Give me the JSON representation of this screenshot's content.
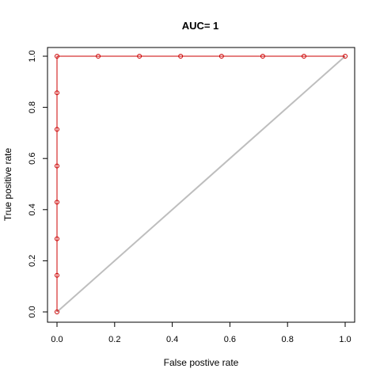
{
  "chart_data": {
    "type": "line",
    "title": "AUC= 1",
    "xlabel": "False postive rate",
    "ylabel": "True positive rate",
    "xlim": [
      0,
      1
    ],
    "ylim": [
      0,
      1
    ],
    "x_ticks": [
      "0.0",
      "0.2",
      "0.4",
      "0.6",
      "0.8",
      "1.0"
    ],
    "y_ticks": [
      "0.0",
      "0.2",
      "0.4",
      "0.6",
      "0.8",
      "1.0"
    ],
    "grid": false,
    "series": [
      {
        "color": "#cc0000",
        "marker": "open-circle",
        "points": [
          [
            0,
            0
          ],
          [
            0,
            0.143
          ],
          [
            0,
            0.286
          ],
          [
            0,
            0.429
          ],
          [
            0,
            0.571
          ],
          [
            0,
            0.714
          ],
          [
            0,
            0.857
          ],
          [
            0,
            1
          ],
          [
            0.143,
            1
          ],
          [
            0.286,
            1
          ],
          [
            0.429,
            1
          ],
          [
            0.571,
            1
          ],
          [
            0.714,
            1
          ],
          [
            0.857,
            1
          ],
          [
            1,
            1
          ]
        ]
      },
      {
        "color": "#bebebe",
        "marker": "none",
        "points": [
          [
            0,
            0
          ],
          [
            1,
            1
          ]
        ]
      }
    ]
  }
}
